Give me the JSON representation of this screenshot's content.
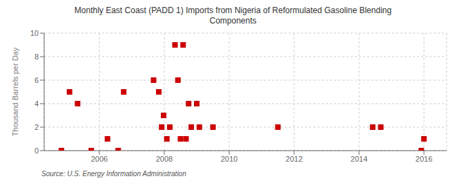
{
  "chart_data": {
    "type": "scatter",
    "title": "Monthly East Coast (PADD 1) Imports from Nigeria of Reformulated Gasoline Blending\nComponents",
    "ylabel": "Thousand Barrels per Day",
    "source": "Source: U.S. Energy Information Administration",
    "x": [
      2004.83,
      2005.08,
      2005.33,
      2005.75,
      2006.25,
      2006.58,
      2006.75,
      2007.67,
      2007.83,
      2007.92,
      2007.98,
      2008.08,
      2008.17,
      2008.33,
      2008.42,
      2008.5,
      2008.58,
      2008.67,
      2008.75,
      2008.83,
      2009.0,
      2009.08,
      2009.5,
      2011.5,
      2014.42,
      2014.67,
      2015.92,
      2016.0
    ],
    "values": [
      0,
      5,
      4,
      0,
      1,
      0,
      5,
      6,
      5,
      2,
      3,
      1,
      2,
      9,
      6,
      1,
      9,
      1,
      4,
      2,
      4,
      2,
      2,
      2,
      2,
      2,
      0,
      1
    ],
    "color": "#cc0000",
    "marker": "square",
    "xlim": [
      2004.3,
      2016.7
    ],
    "xticks": [
      2006,
      2008,
      2010,
      2012,
      2014,
      2016
    ],
    "ylim": [
      0,
      10
    ],
    "yticks": [
      0,
      2,
      4,
      6,
      8,
      10
    ],
    "grid": true
  }
}
